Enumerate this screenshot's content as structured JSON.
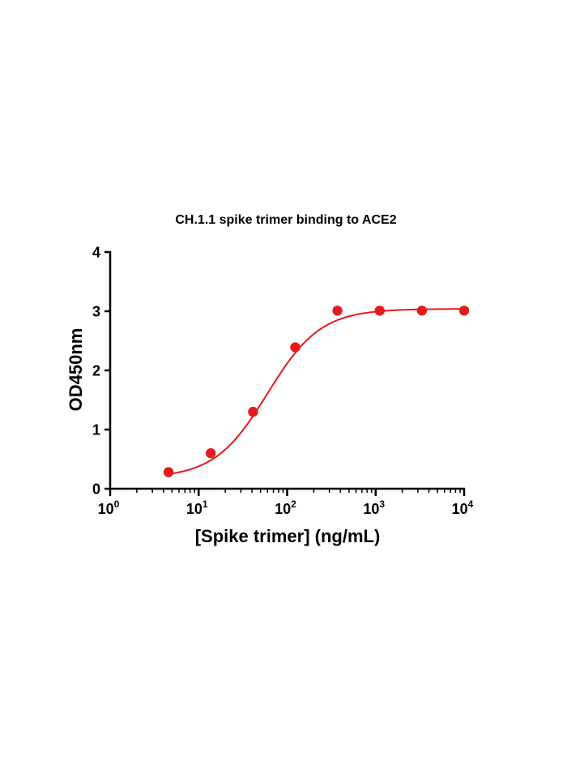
{
  "chart_data": {
    "type": "scatter",
    "title": "CH.1.1 spike trimer binding to ACE2",
    "xlabel": "[Spike trimer] (ng/mL)",
    "ylabel": "OD450nm",
    "x_scale": "log",
    "xlim": [
      1,
      10000
    ],
    "ylim": [
      0,
      4
    ],
    "grid": false,
    "legend": "none",
    "x_ticks": [
      {
        "base": "10",
        "exp": "0",
        "value": 1
      },
      {
        "base": "10",
        "exp": "1",
        "value": 10
      },
      {
        "base": "10",
        "exp": "2",
        "value": 100
      },
      {
        "base": "10",
        "exp": "3",
        "value": 1000
      },
      {
        "base": "10",
        "exp": "4",
        "value": 10000
      }
    ],
    "y_ticks": [
      "0",
      "1",
      "2",
      "3",
      "4"
    ],
    "series": [
      {
        "color": "#e41a1c",
        "points": [
          {
            "x": 4.57,
            "y": 0.28
          },
          {
            "x": 13.7,
            "y": 0.6
          },
          {
            "x": 41.2,
            "y": 1.3
          },
          {
            "x": 123.5,
            "y": 2.39
          },
          {
            "x": 370,
            "y": 3.01
          },
          {
            "x": 1111,
            "y": 3.01
          },
          {
            "x": 3333,
            "y": 3.01
          },
          {
            "x": 10000,
            "y": 3.01
          }
        ],
        "fit": {
          "model": "4PL",
          "bottom": 0.18,
          "top": 3.04,
          "ec50": 60,
          "hill": 1.45
        }
      }
    ]
  }
}
